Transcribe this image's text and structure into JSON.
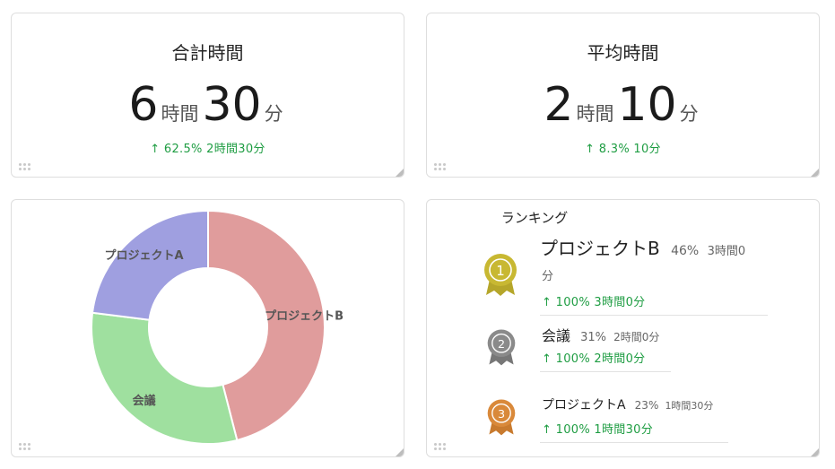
{
  "total": {
    "title": "合計時間",
    "hours": "6",
    "hours_unit": "時間",
    "minutes": "30",
    "minutes_unit": "分",
    "change": "↑ 62.5% 2時間30分"
  },
  "average": {
    "title": "平均時間",
    "hours": "2",
    "hours_unit": "時間",
    "minutes": "10",
    "minutes_unit": "分",
    "change": "↑ 8.3% 10分"
  },
  "chart_data": {
    "type": "pie",
    "donut": true,
    "categories": [
      "プロジェクトB",
      "会議",
      "プロジェクトA"
    ],
    "values": [
      46,
      31,
      23
    ],
    "colors": [
      "#e09c9c",
      "#9fe09f",
      "#9f9fe0"
    ],
    "title": "",
    "legend": "none"
  },
  "ranking": {
    "title": "ランキング",
    "items": [
      {
        "rank": "1",
        "name": "プロジェクトB",
        "pct": "46%",
        "time": "3時間0",
        "time_wrap": "分",
        "change": "↑ 100% 3時間0分",
        "medal_color": "#c8b832",
        "medal_ribbon": "#b5a62a"
      },
      {
        "rank": "2",
        "name": "会議",
        "pct": "31%",
        "time": "2時間0分",
        "change": "↑ 100% 2時間0分",
        "medal_color": "#8a8a8a",
        "medal_ribbon": "#777777"
      },
      {
        "rank": "3",
        "name": "プロジェクトA",
        "pct": "23%",
        "time": "1時間30分",
        "change": "↑ 100% 1時間30分",
        "medal_color": "#d9893a",
        "medal_ribbon": "#c87a2e"
      }
    ]
  }
}
